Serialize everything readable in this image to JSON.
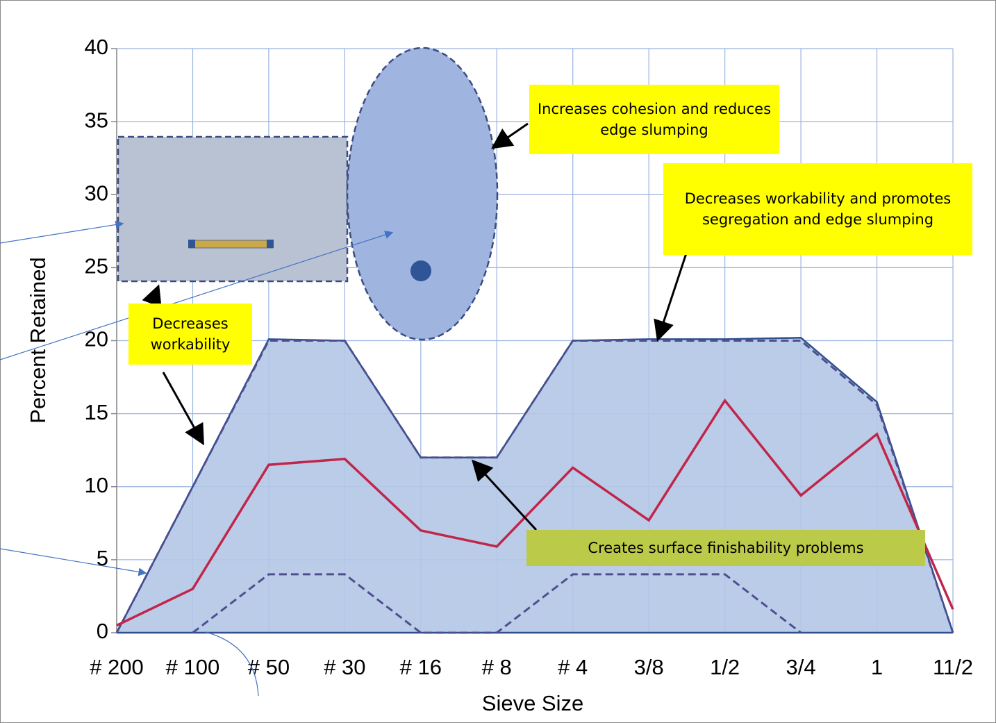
{
  "chart_data": {
    "type": "line",
    "x_label": "Sieve Size",
    "y_label": "Percent Retained",
    "categories": [
      "# 200",
      "# 100",
      "# 50",
      "# 30",
      "# 16",
      "# 8",
      "# 4",
      "3/8",
      "1/2",
      "3/4",
      "1",
      "11/2"
    ],
    "ylim": [
      0,
      40
    ],
    "yticks": [
      0,
      5,
      10,
      15,
      20,
      25,
      30,
      35,
      40
    ],
    "grid": true,
    "series": [
      {
        "style": "area",
        "color": "#2f4f8f",
        "fill": "#b4c7e7",
        "values": [
          0,
          10,
          20.1,
          20,
          12,
          12,
          20,
          20.1,
          20.1,
          20.2,
          15.8,
          0
        ]
      },
      {
        "style": "dashed",
        "color": "#4f4f8f",
        "values": [
          0,
          10,
          20,
          20,
          12,
          12,
          20,
          20,
          20,
          20,
          15.6,
          0
        ]
      },
      {
        "style": "dashed",
        "color": "#4f4f8f",
        "values": [
          null,
          0,
          4,
          4,
          0,
          0,
          4,
          4,
          4,
          0,
          null,
          null
        ]
      },
      {
        "style": "line",
        "color": "#c0264a",
        "values": [
          0.5,
          3,
          11.5,
          11.9,
          7,
          5.9,
          11.3,
          7.7,
          15.9,
          9.4,
          13.6,
          1.6
        ]
      }
    ],
    "annotations": [
      "Increases cohesion and reduces edge slumping",
      "Decreases workability and promotes segregation and edge slumping",
      "Decreases workability",
      "Creates surface finishability problems"
    ]
  }
}
